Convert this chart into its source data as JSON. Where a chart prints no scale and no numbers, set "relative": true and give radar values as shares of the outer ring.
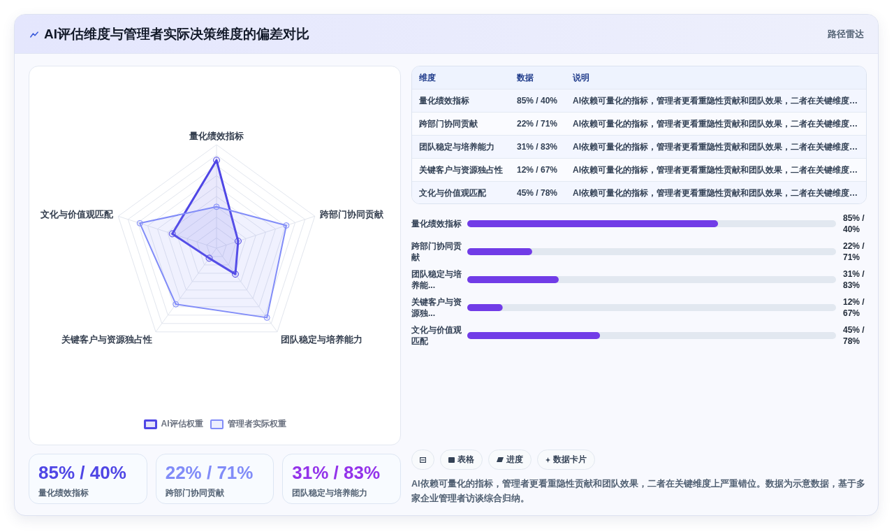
{
  "chart_data": [
    {
      "type": "other",
      "title": "AI评估维度与管理者实际决策维度的偏差对比",
      "subtitle": "路径雷达"
    },
    {
      "type": "radar",
      "relative": true,
      "categories": [
        "量化绩效指标",
        "跨部门协同贡献",
        "团队稳定与培养能力",
        "关键客户与资源独占性",
        "文化与价值观匹配"
      ],
      "series": [
        {
          "name": "AI评估权重",
          "color": "#4f46e5",
          "values": [
            0.85,
            0.22,
            0.31,
            0.12,
            0.45
          ]
        },
        {
          "name": "管理者实际权重",
          "color": "#818cf8",
          "values": [
            0.4,
            0.71,
            0.83,
            0.67,
            0.78
          ]
        }
      ],
      "grid": true,
      "legend": "bottom",
      "marker": "circle"
    },
    {
      "type": "other",
      "categories": [
        "维度",
        "数据",
        "说明"
      ],
      "cell_labels": [
        [
          "量化绩效指标",
          "85% / 40%",
          "AI依赖可量化的指标，管理者更看重隐性贡献和团队效果，二者在关键维度…"
        ],
        [
          "跨部门协同贡献",
          "22% / 71%",
          "AI依赖可量化的指标，管理者更看重隐性贡献和团队效果，二者在关键维度…"
        ],
        [
          "团队稳定与培养能力",
          "31% / 83%",
          "AI依赖可量化的指标，管理者更看重隐性贡献和团队效果，二者在关键维度…"
        ],
        [
          "关键客户与资源独占性",
          "12% / 67%",
          "AI依赖可量化的指标，管理者更看重隐性贡献和团队效果，二者在关键维度…"
        ],
        [
          "文化与价值观匹配",
          "45% / 78%",
          "AI依赖可量化的指标，管理者更看重隐性贡献和团队效果，二者在关键维度…"
        ]
      ]
    },
    {
      "type": "bar",
      "orientation": "horizontal",
      "categories": [
        "量化绩效指标",
        "跨部门协同贡献",
        "团队稳定与培养能...",
        "关键客户与资源独...",
        "文化与价值观匹配"
      ],
      "values": [
        85,
        22,
        31,
        12,
        45
      ],
      "color": "#713ce7",
      "xlim": [
        0,
        125
      ],
      "value_labels": [
        "85% / 40%",
        "22% / 71%",
        "31% / 83%",
        "12% / 67%",
        "45% / 78%"
      ]
    },
    {
      "type": "other",
      "categories": [
        "量化绩效指标",
        "跨部门协同贡献",
        "团队稳定与培养能力"
      ],
      "value_labels": [
        "85% / 40%",
        "22% / 71%",
        "31% / 83%"
      ]
    },
    {
      "type": "other",
      "categories": [
        null,
        "表格",
        "进度",
        "数据卡片"
      ],
      "annotations": [
        "AI依赖可量化的指标，管理者更看重隐性贡献和团队效果，二者在关键维度上严重错位。数据为示意数据，基于多家企业管理者访谈综合归纳。"
      ]
    }
  ]
}
